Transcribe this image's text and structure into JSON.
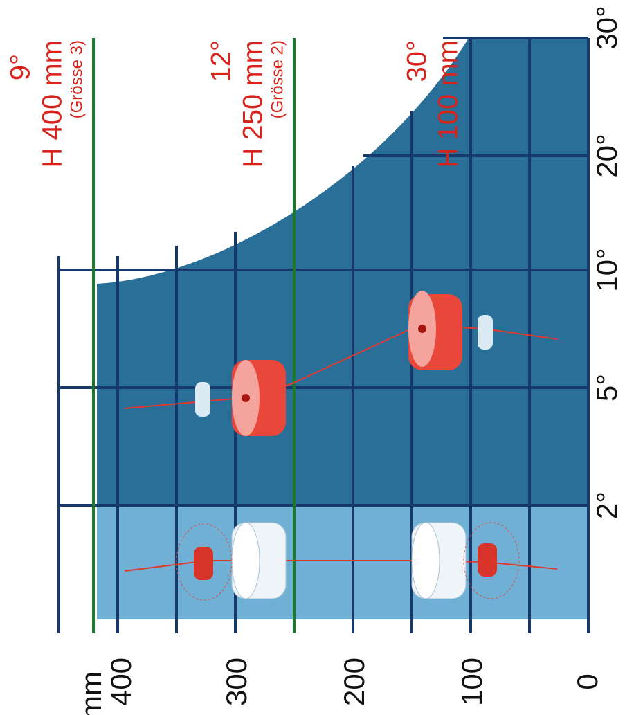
{
  "y_axis": {
    "unit": "mm",
    "labels": [
      "400",
      "300",
      "200",
      "100",
      "0"
    ]
  },
  "x_axis": {
    "labels": [
      "2°",
      "5°",
      "10°",
      "20°",
      "30°"
    ]
  },
  "annotations": [
    {
      "angle": "9°",
      "height": "H 400 mm",
      "size": "(Grösse 3)"
    },
    {
      "angle": "12°",
      "height": "H 250 mm",
      "size": "(Grösse 2)"
    },
    {
      "angle": "30°",
      "height": "H 100 mm"
    }
  ]
}
